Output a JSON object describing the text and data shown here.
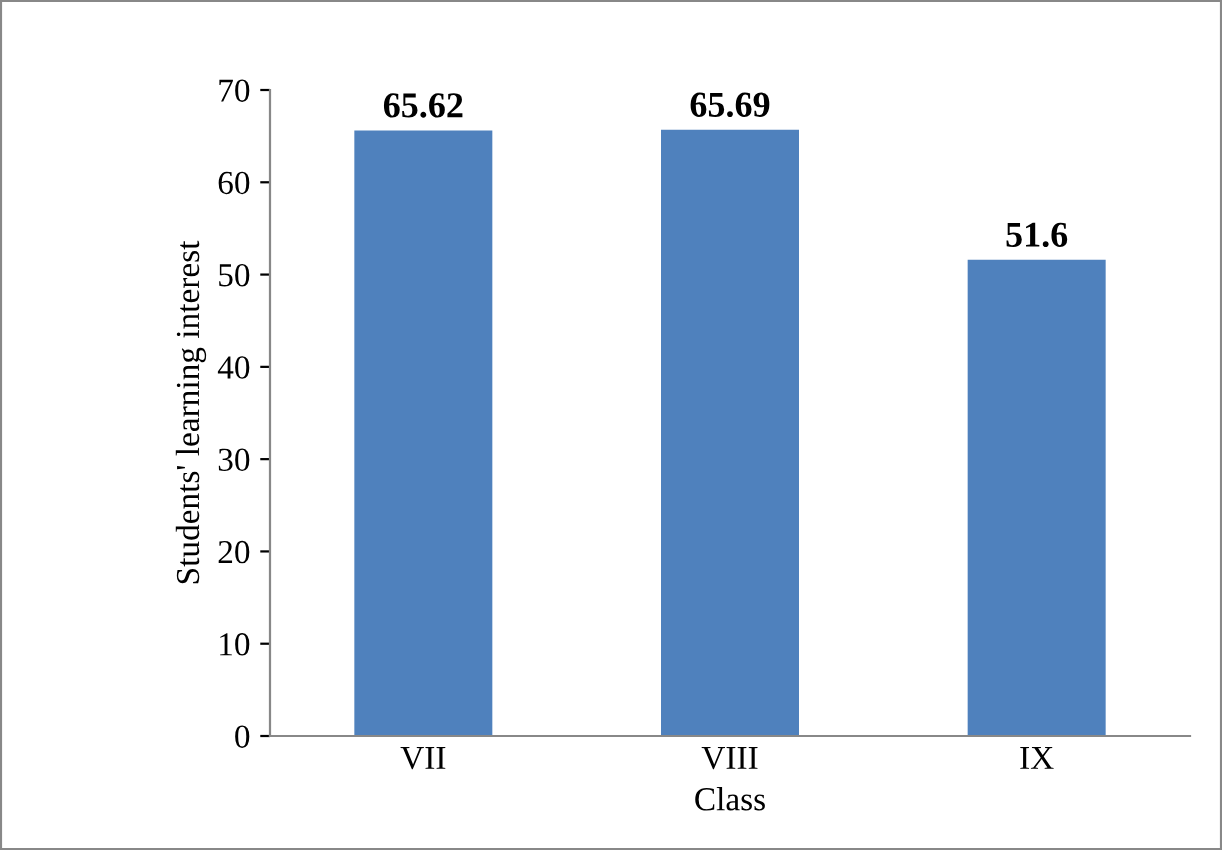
{
  "chart_data": {
    "type": "bar",
    "xlabel": "Class",
    "ylabel": "Students' learning interest",
    "categories": [
      "VII",
      "VIII",
      "IX"
    ],
    "values": [
      65.62,
      65.69,
      51.6
    ],
    "color": "#4f81bd",
    "ylim": [
      0,
      70
    ],
    "yticks": [
      0,
      10,
      20,
      30,
      40,
      50,
      60,
      70
    ],
    "grid": false,
    "data_labels": true
  }
}
